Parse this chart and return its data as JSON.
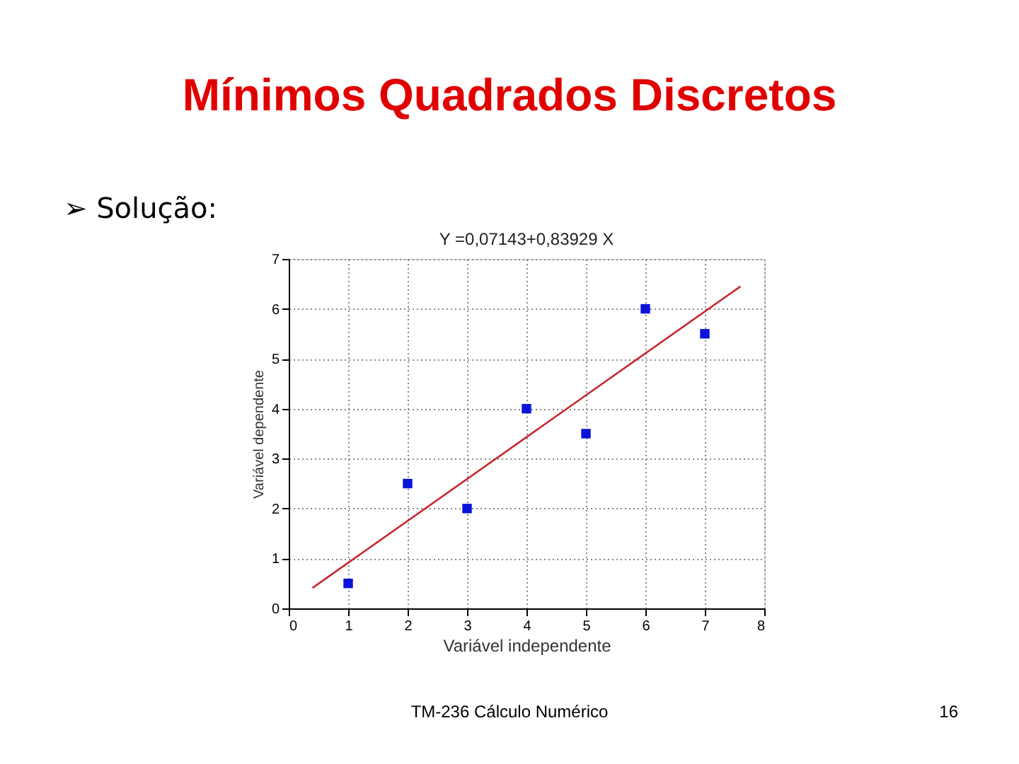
{
  "chart_data": {
    "type": "scatter",
    "title": "Mínimos Quadrados Discretos",
    "subtitle": "➢ Solução:",
    "xlabel": "Variável independente",
    "ylabel": "Variável dependente",
    "annotations": [
      "Y =0,07143+0,83929 X",
      "TM-236 Cálculo Numérico",
      "16"
    ],
    "x": [
      1,
      2,
      3,
      4,
      5,
      6,
      7
    ],
    "series": [
      {
        "color": "#0a14d8",
        "marker": "square",
        "values": [
          0.5,
          2.5,
          2,
          4,
          3.5,
          6,
          5.5
        ]
      },
      {
        "type": "line",
        "color": "#c8282d",
        "x": [
          0.4,
          7.6
        ],
        "values": [
          0.41,
          6.45
        ],
        "marker": "none",
        "line_style": "solid"
      }
    ],
    "xlim": [
      0,
      8
    ],
    "xticks": [
      0,
      1,
      2,
      3,
      4,
      5,
      6,
      7,
      8
    ],
    "ylim": [
      0,
      7
    ],
    "yticks": [
      0,
      1,
      2,
      3,
      4,
      5,
      6,
      7
    ],
    "grid": true,
    "legend": false
  }
}
